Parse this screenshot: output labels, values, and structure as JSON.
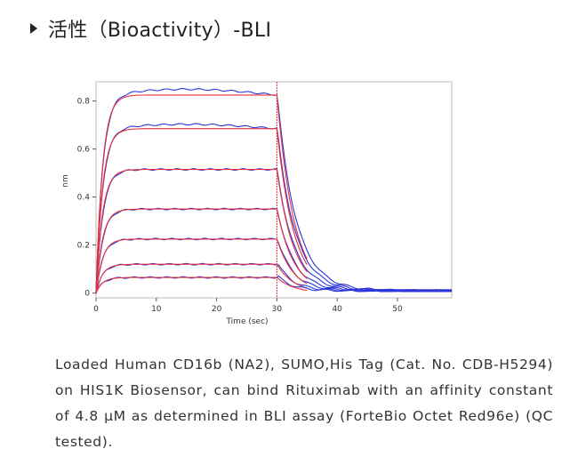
{
  "header": {
    "title": "活性（Bioactivity）-BLI"
  },
  "caption": "Loaded Human CD16b (NA2), SUMO,His Tag (Cat. No. CDB-H5294) on HIS1K Biosensor, can bind Rituximab with an affinity constant of 4.8 μM as determined in BLI assay (ForteBio Octet Red96e) (QC tested).",
  "colors": {
    "measured": "#2a34d8",
    "fit": "#e8323a",
    "axis": "#555555",
    "frame": "#bbbbbb"
  },
  "chart_data": {
    "type": "line",
    "title": "",
    "xlabel": "Time (sec)",
    "ylabel": "nm",
    "xlim": [
      0,
      59
    ],
    "ylim": [
      -0.02,
      0.88
    ],
    "xticks": [
      0,
      10,
      20,
      30,
      40,
      50
    ],
    "yticks": [
      0,
      0.2,
      0.4,
      0.6,
      0.8
    ],
    "assoc_end": 30,
    "grid": false,
    "legend": "none",
    "series": [
      {
        "plateau": 0.825,
        "overshoot": 0.02
      },
      {
        "plateau": 0.685,
        "overshoot": 0.015
      },
      {
        "plateau": 0.515,
        "overshoot": 0.0
      },
      {
        "plateau": 0.35,
        "overshoot": 0.0
      },
      {
        "plateau": 0.225,
        "overshoot": 0.0
      },
      {
        "plateau": 0.12,
        "overshoot": 0.0
      },
      {
        "plateau": 0.065,
        "overshoot": 0.0
      }
    ]
  }
}
